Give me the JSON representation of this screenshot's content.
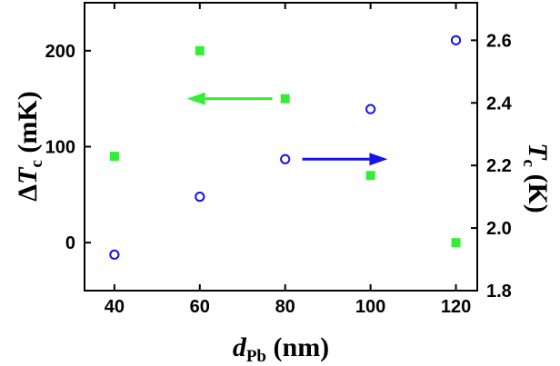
{
  "chart_data": {
    "type": "scatter",
    "x": [
      40,
      60,
      80,
      100,
      120
    ],
    "xlim": [
      33,
      125
    ],
    "x_ticks": [
      40,
      60,
      80,
      100,
      120
    ],
    "y_left_lim": [
      -50,
      250
    ],
    "y_left_ticks": [
      0,
      100,
      200
    ],
    "y_right_lim": [
      1.8,
      2.72
    ],
    "y_right_ticks": [
      1.8,
      2.0,
      2.2,
      2.4,
      2.6
    ],
    "y_right_tick_labels": [
      "1.8",
      "2.0",
      "2.2",
      "2.4",
      "2.6"
    ],
    "xlabel": {
      "main": "d",
      "sub": "Pb",
      "unit": " (nm)"
    },
    "ylabel_left": {
      "prefix": "Δ",
      "main": "T",
      "sub": "c",
      "unit": " (mK)"
    },
    "ylabel_right": {
      "main": "T",
      "sub": "c",
      "unit": " (K)"
    },
    "series": [
      {
        "axis": "left",
        "marker": "filled-square",
        "color": "#33ee33",
        "values": [
          90,
          200,
          150,
          70,
          0
        ]
      },
      {
        "axis": "right",
        "marker": "open-circle",
        "color": "#1414e6",
        "values": [
          1.915,
          2.1,
          2.22,
          2.38,
          2.6
        ]
      }
    ],
    "arrows": [
      {
        "series": 0,
        "direction": "left",
        "color": "#33ee33",
        "from": [
          77,
          150
        ],
        "to": [
          57,
          150
        ]
      },
      {
        "series": 1,
        "direction": "right",
        "color": "#1414e6",
        "from": [
          84,
          2.22
        ],
        "to": [
          104,
          2.22
        ]
      }
    ],
    "grid": false,
    "legend": "none"
  }
}
